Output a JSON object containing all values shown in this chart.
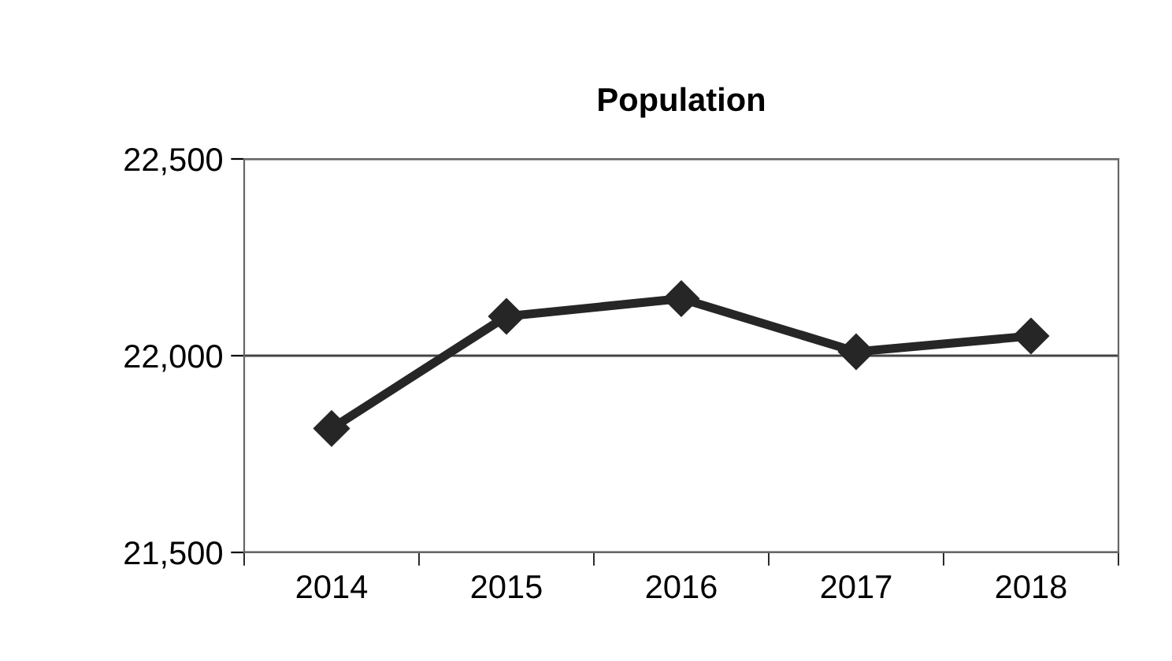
{
  "chart_data": {
    "type": "line",
    "title": "Population",
    "categories": [
      "2014",
      "2015",
      "2016",
      "2017",
      "2018"
    ],
    "series": [
      {
        "color": "#262626",
        "values": [
          21815,
          22100,
          22145,
          22010,
          22050
        ]
      }
    ],
    "ylim": [
      21500,
      22500
    ],
    "yticks": [
      {
        "value": 21500,
        "label": "21,500"
      },
      {
        "value": 22000,
        "label": "22,000"
      },
      {
        "value": 22500,
        "label": "22,500"
      }
    ],
    "grid": "y",
    "marker": "diamond",
    "line_style": "solid"
  }
}
